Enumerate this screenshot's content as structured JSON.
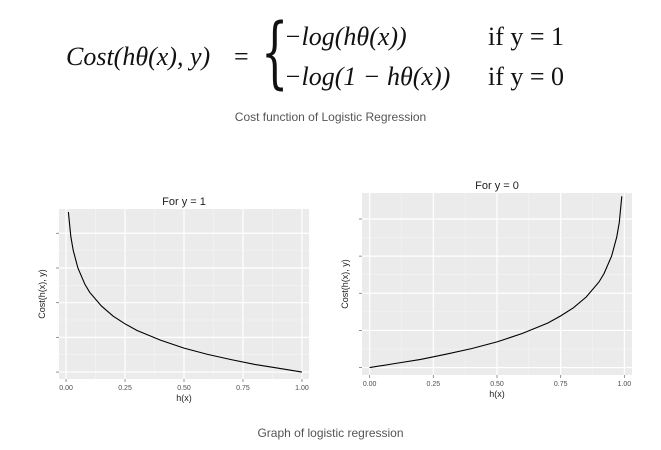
{
  "formula": {
    "lhs": "Cost(hθ(x), y)",
    "eq": "=",
    "cases": [
      {
        "expr": "−log(hθ(x))",
        "cond": "if y = 1"
      },
      {
        "expr": "−log(1 − hθ(x))",
        "cond": "if y = 0"
      }
    ]
  },
  "captions": {
    "top": "Cost function of Logistic Regression",
    "bottom": "Graph of logistic regression"
  },
  "colors": {
    "panel": "#ebebeb",
    "grid": "#ffffff",
    "line": "#000000",
    "tick_text": "#4d4d4d"
  },
  "chart_data": [
    {
      "type": "line",
      "title": "For y = 1",
      "xlabel": "h(x)",
      "ylabel": "Cost(h(x), y)",
      "xlim": [
        -0.03,
        1.03
      ],
      "ylim": [
        -0.2,
        4.7
      ],
      "x_ticks": [
        "0.00",
        "0.25",
        "0.50",
        "0.75",
        "1.00"
      ],
      "y_ticks_shown": false,
      "grid": true,
      "series": [
        {
          "function": "-log(x)",
          "x": [
            0.01,
            0.02,
            0.03,
            0.05,
            0.08,
            0.1,
            0.15,
            0.2,
            0.25,
            0.3,
            0.4,
            0.5,
            0.6,
            0.7,
            0.8,
            0.9,
            1.0
          ],
          "y": [
            4.61,
            3.91,
            3.51,
            3.0,
            2.53,
            2.3,
            1.9,
            1.61,
            1.39,
            1.2,
            0.92,
            0.69,
            0.51,
            0.36,
            0.22,
            0.11,
            0.0
          ]
        }
      ]
    },
    {
      "type": "line",
      "title": "For y = 0",
      "xlabel": "h(x)",
      "ylabel": "Cost(h(x), y)",
      "xlim": [
        -0.03,
        1.03
      ],
      "ylim": [
        -0.2,
        4.7
      ],
      "x_ticks": [
        "0.00",
        "0.25",
        "0.50",
        "0.75",
        "1.00"
      ],
      "y_ticks_shown": false,
      "grid": true,
      "series": [
        {
          "function": "-log(1-x)",
          "x": [
            0.0,
            0.1,
            0.2,
            0.3,
            0.4,
            0.5,
            0.6,
            0.7,
            0.75,
            0.8,
            0.85,
            0.9,
            0.92,
            0.95,
            0.97,
            0.98,
            0.99
          ],
          "y": [
            0.0,
            0.11,
            0.22,
            0.36,
            0.51,
            0.69,
            0.92,
            1.2,
            1.39,
            1.61,
            1.9,
            2.3,
            2.53,
            3.0,
            3.51,
            3.91,
            4.61
          ]
        }
      ]
    }
  ]
}
